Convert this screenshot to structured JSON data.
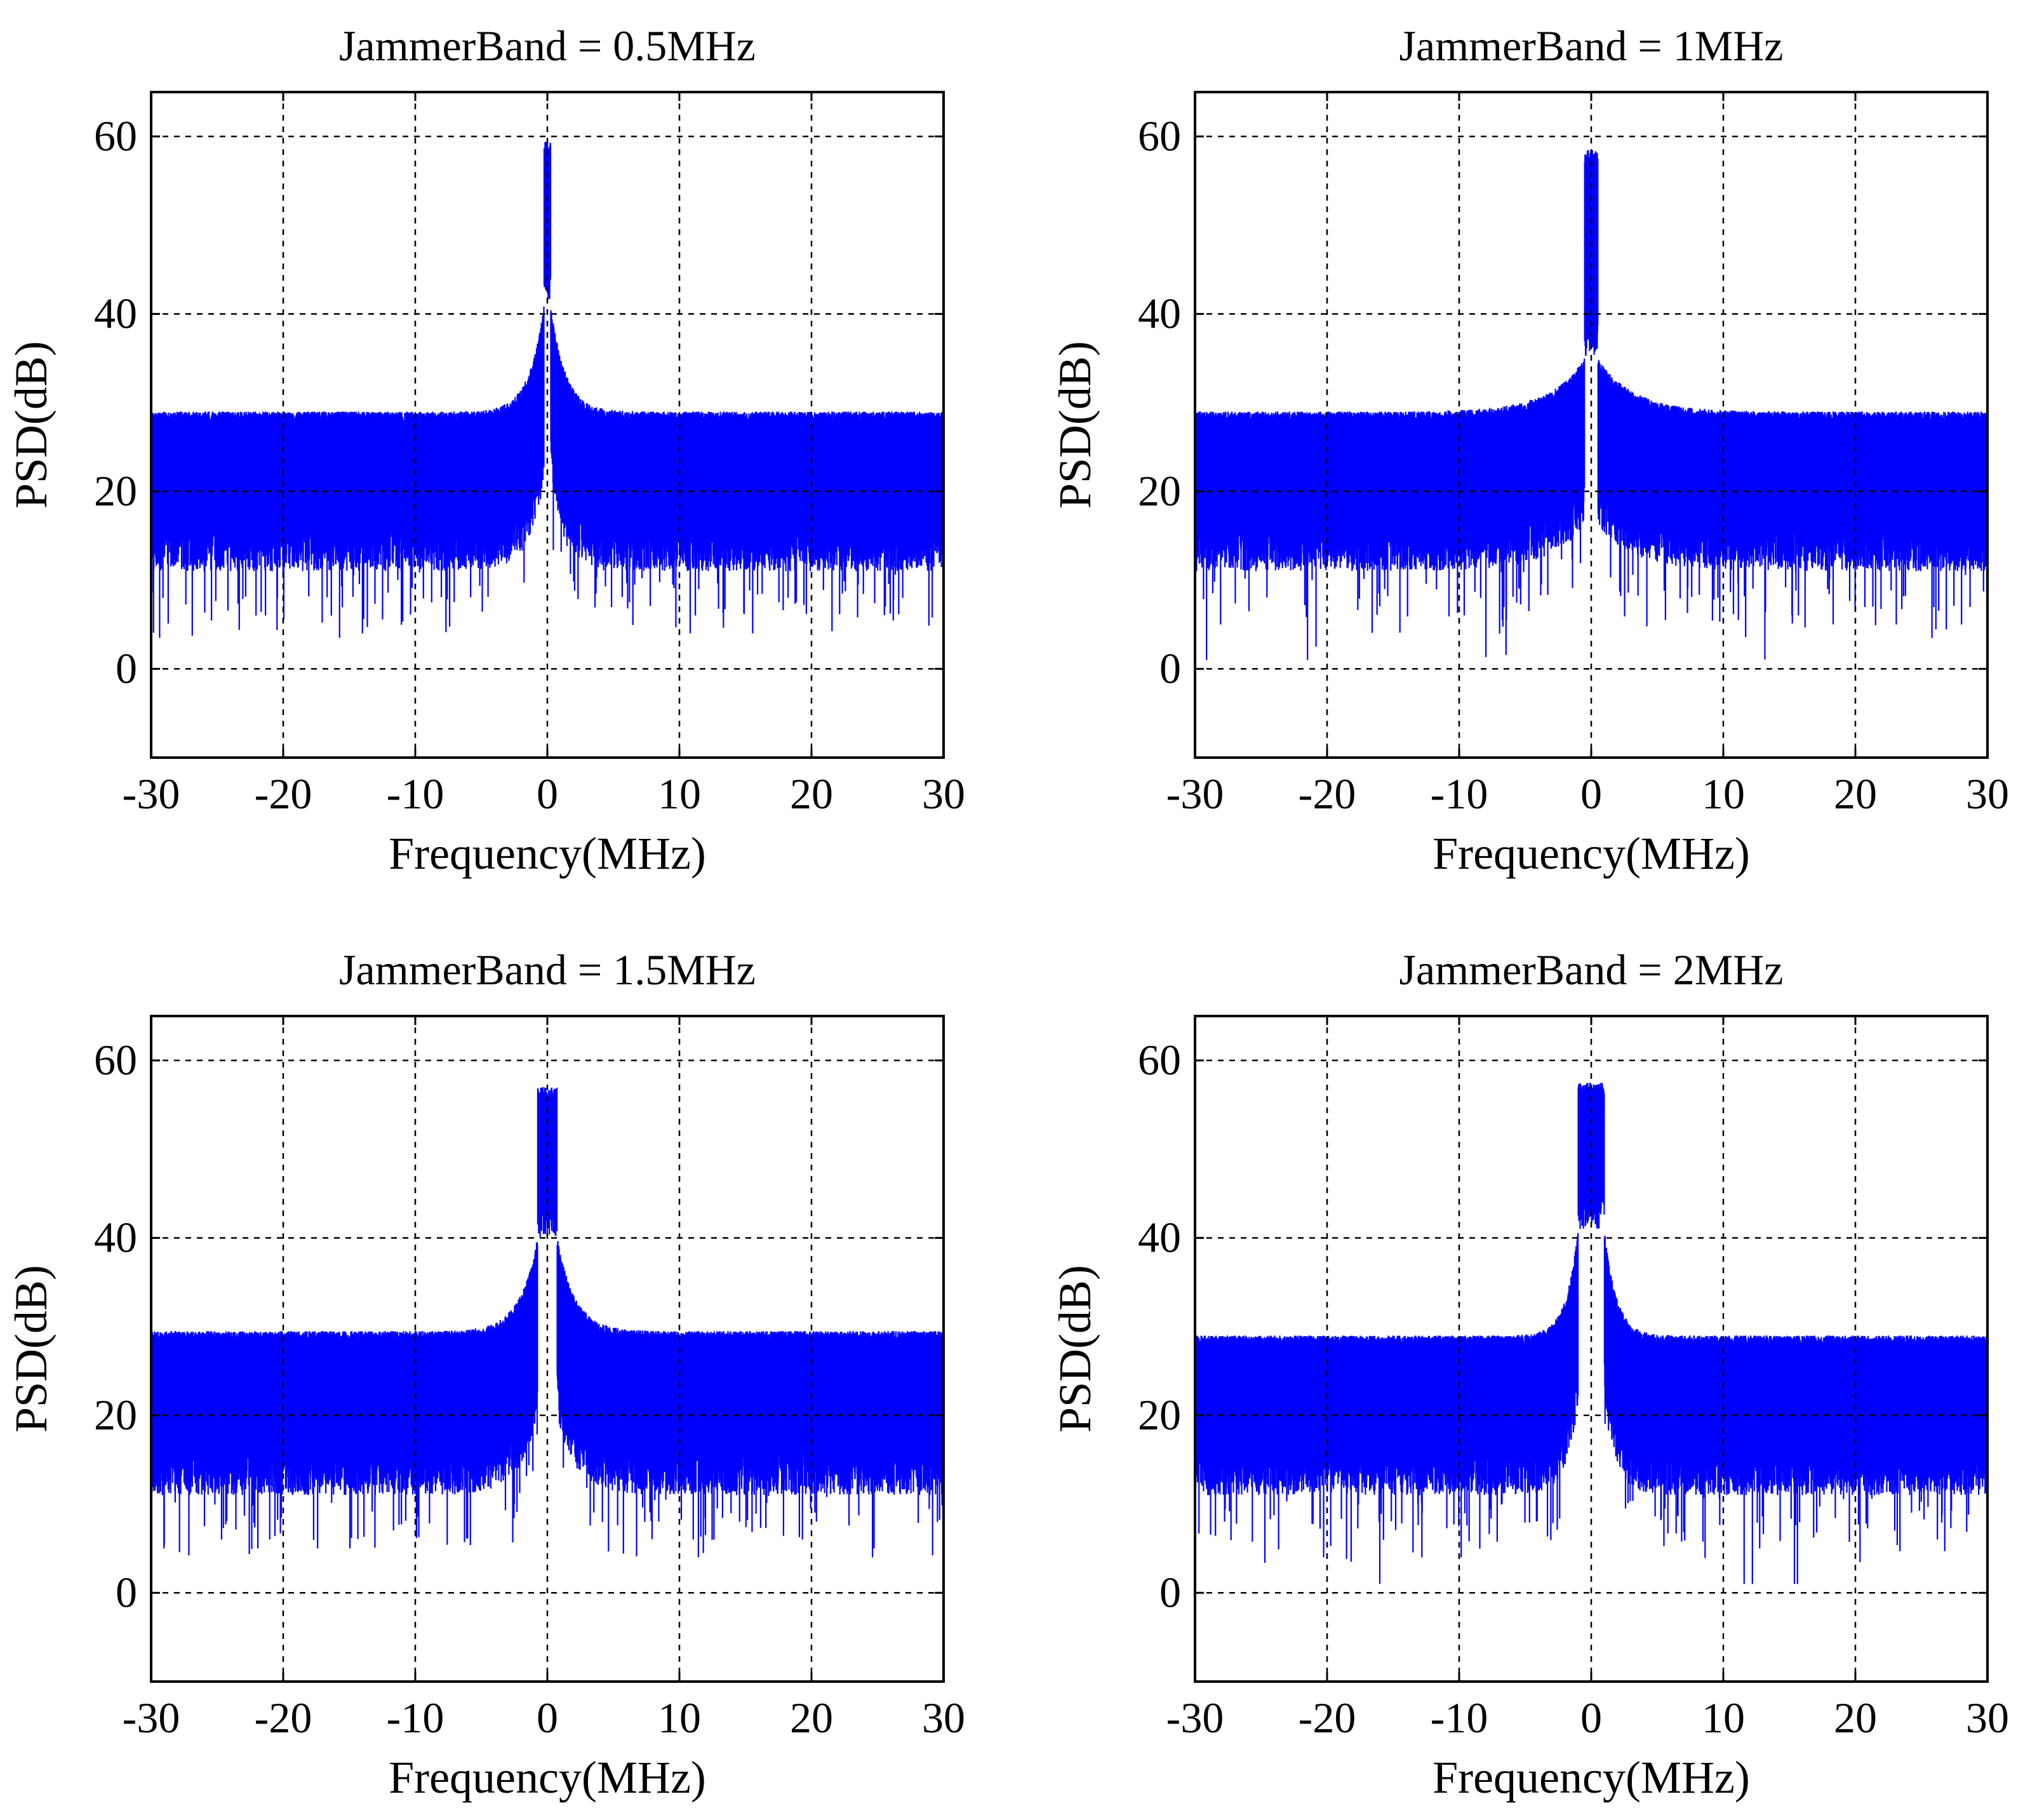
{
  "figure": {
    "series_color": "#0000ff"
  },
  "chart_data": [
    {
      "type": "line",
      "title": "JammerBand = 0.5MHz",
      "xlabel": "Frequency(MHz)",
      "ylabel": "PSD(dB)",
      "xlim": [
        -30,
        30
      ],
      "ylim": [
        -10,
        65
      ],
      "xticks": [
        -30,
        -20,
        -10,
        0,
        10,
        20,
        30
      ],
      "xtick_labels": [
        "-30",
        "-20",
        "-10",
        "0",
        "10",
        "20",
        "30"
      ],
      "yticks": [
        0,
        20,
        40,
        60
      ],
      "ytick_labels": [
        "0",
        "20",
        "40",
        "60"
      ],
      "grid": true,
      "series": [
        {
          "name": "PSD",
          "noise_floor_top_db": 29,
          "noise_floor_bottom_db": 13,
          "noise_min_dips_db": [
            3.5,
            4,
            6,
            8
          ],
          "jammer_center_mhz": 0,
          "jammer_bandwidth_mhz": 0.5,
          "jammer_peak_db": 59.5,
          "skirt_peak_db": 41,
          "skirt_width_mhz": 2.5
        }
      ]
    },
    {
      "type": "line",
      "title": "JammerBand = 1MHz",
      "xlabel": "Frequency(MHz)",
      "ylabel": "PSD(dB)",
      "xlim": [
        -30,
        30
      ],
      "ylim": [
        -10,
        65
      ],
      "xticks": [
        -30,
        -20,
        -10,
        0,
        10,
        20,
        30
      ],
      "xtick_labels": [
        "-30",
        "-20",
        "-10",
        "0",
        "10",
        "20",
        "30"
      ],
      "yticks": [
        0,
        20,
        40,
        60
      ],
      "ytick_labels": [
        "0",
        "20",
        "40",
        "60"
      ],
      "grid": true,
      "series": [
        {
          "name": "PSD",
          "noise_floor_top_db": 29,
          "noise_floor_bottom_db": 13,
          "noise_min_dips_db": [
            1,
            2.5,
            3.5,
            5
          ],
          "jammer_center_mhz": 0,
          "jammer_bandwidth_mhz": 1,
          "jammer_peak_db": 58.5,
          "skirt_peak_db": 35,
          "skirt_width_mhz": 6
        }
      ]
    },
    {
      "type": "line",
      "title": "JammerBand = 1.5MHz",
      "xlabel": "Frequency(MHz)",
      "ylabel": "PSD(dB)",
      "xlim": [
        -30,
        30
      ],
      "ylim": [
        -10,
        65
      ],
      "xticks": [
        -30,
        -20,
        -10,
        0,
        10,
        20,
        30
      ],
      "xtick_labels": [
        "-30",
        "-20",
        "-10",
        "0",
        "10",
        "20",
        "30"
      ],
      "yticks": [
        0,
        20,
        40,
        60
      ],
      "ytick_labels": [
        "0",
        "20",
        "40",
        "60"
      ],
      "grid": true,
      "series": [
        {
          "name": "PSD",
          "noise_floor_top_db": 29.5,
          "noise_floor_bottom_db": 13,
          "noise_min_dips_db": [
            1,
            4,
            5,
            6
          ],
          "jammer_center_mhz": 0,
          "jammer_bandwidth_mhz": 1.5,
          "jammer_peak_db": 57,
          "skirt_peak_db": 40,
          "skirt_width_mhz": 3
        }
      ]
    },
    {
      "type": "line",
      "title": "JammerBand = 2MHz",
      "xlabel": "Frequency(MHz)",
      "ylabel": "PSD(dB)",
      "xlim": [
        -30,
        30
      ],
      "ylim": [
        -10,
        65
      ],
      "xticks": [
        -30,
        -20,
        -10,
        0,
        10,
        20,
        30
      ],
      "xtick_labels": [
        "-30",
        "-20",
        "-10",
        "0",
        "10",
        "20",
        "30"
      ],
      "yticks": [
        0,
        20,
        40,
        60
      ],
      "ytick_labels": [
        "0",
        "20",
        "40",
        "60"
      ],
      "grid": true,
      "series": [
        {
          "name": "PSD",
          "noise_floor_top_db": 29,
          "noise_floor_bottom_db": 13,
          "noise_min_dips_db": [
            1,
            3.5,
            4,
            6
          ],
          "jammer_center_mhz": 0,
          "jammer_bandwidth_mhz": 2,
          "jammer_peak_db": 57.5,
          "skirt_peak_db": 41,
          "skirt_width_mhz": 2
        }
      ]
    }
  ]
}
